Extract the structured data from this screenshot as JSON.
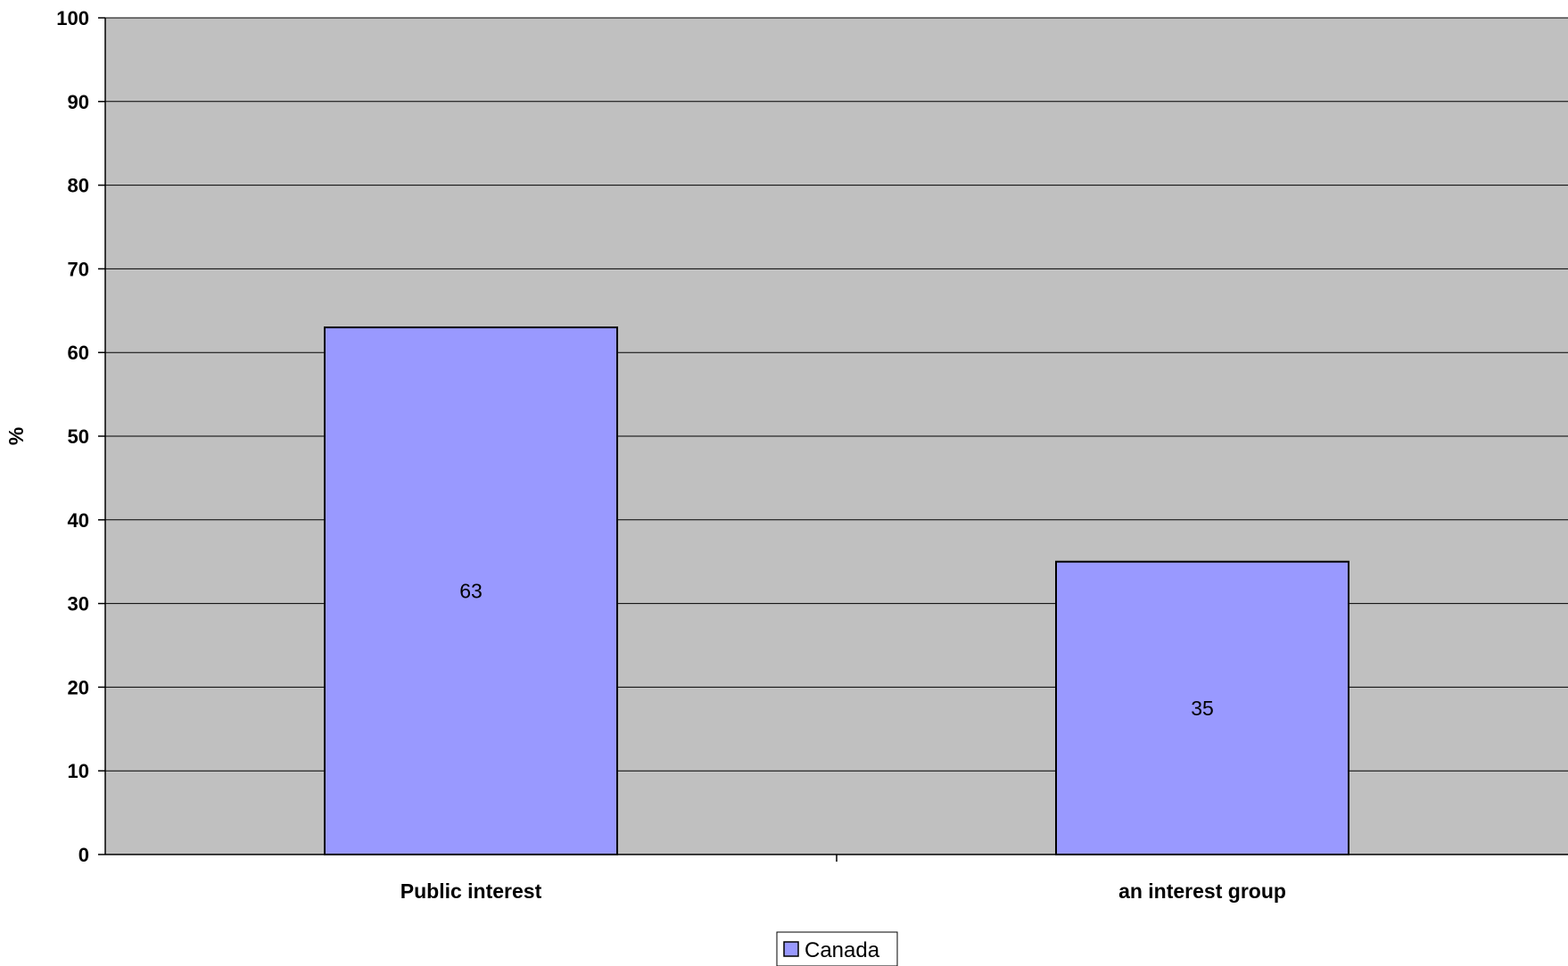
{
  "chart_data": {
    "type": "bar",
    "categories": [
      "Public interest",
      "an interest group"
    ],
    "series": [
      {
        "name": "Canada",
        "values": [
          63,
          35
        ],
        "color": "#9999ff"
      }
    ],
    "ylabel": "%",
    "xlabel": "",
    "ylim": [
      0,
      100
    ],
    "yticks": [
      0,
      10,
      20,
      30,
      40,
      50,
      60,
      70,
      80,
      90,
      100
    ],
    "grid": true,
    "plot_background": "#c0c0c0",
    "legend_position": "bottom-center",
    "data_labels": true
  }
}
